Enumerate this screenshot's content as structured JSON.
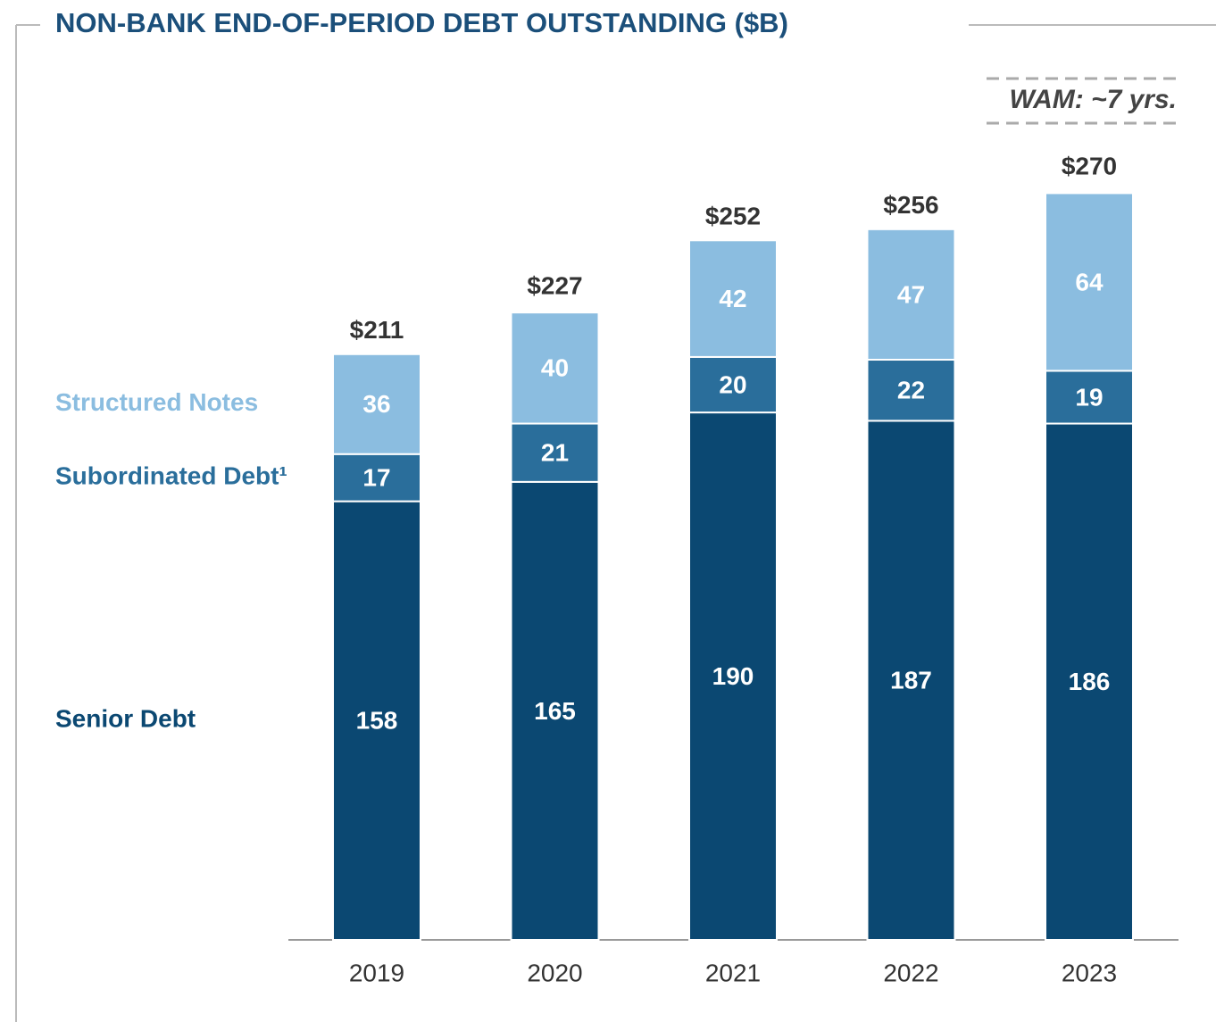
{
  "chart_data": {
    "type": "stacked-bar",
    "title": "NON-BANK END-OF-PERIOD DEBT OUTSTANDING ($B)",
    "annotation": "WAM: ~7 yrs.",
    "categories": [
      "2019",
      "2020",
      "2021",
      "2022",
      "2023"
    ],
    "series": [
      {
        "name": "Senior Debt",
        "color": "#0b4872",
        "values": [
          158,
          165,
          190,
          187,
          186
        ]
      },
      {
        "name": "Subordinated Debt¹",
        "color": "#2a6e9b",
        "values": [
          17,
          21,
          20,
          22,
          19
        ]
      },
      {
        "name": "Structured Notes",
        "color": "#8bbde0",
        "values": [
          36,
          40,
          42,
          47,
          64
        ]
      }
    ],
    "totals": [
      211,
      227,
      252,
      256,
      270
    ],
    "total_labels": [
      "$211",
      "$227",
      "$252",
      "$256",
      "$270"
    ]
  }
}
